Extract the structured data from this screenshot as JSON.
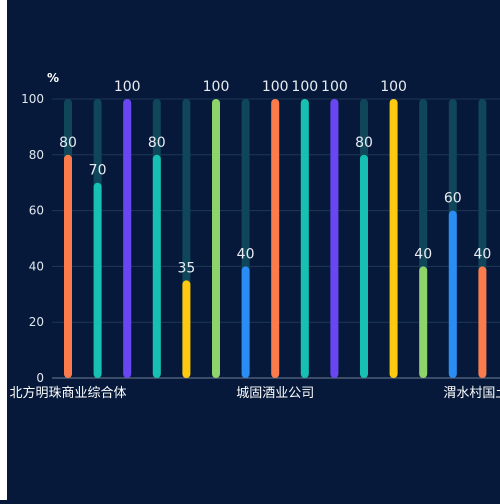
{
  "chart_data": {
    "type": "bar",
    "ylabel": "%",
    "ylim": [
      0,
      100
    ],
    "yticks": [
      0,
      20,
      40,
      60,
      80,
      100
    ],
    "grid": true,
    "background_max": 100,
    "x_tick_labels": [
      "北方明珠商业综合体",
      "城固酒业公司",
      "渭水村国土空"
    ],
    "values": [
      80,
      70,
      100,
      80,
      35,
      100,
      40,
      100,
      100,
      100,
      80,
      100,
      40,
      60,
      40
    ],
    "colors": [
      "#fb7b4d",
      "#16c1b3",
      "#6a45f2",
      "#16c1b3",
      "#fdca10",
      "#8fd46a",
      "#2a8df5",
      "#fb7b4d",
      "#16c1b3",
      "#6a45f2",
      "#16c1b3",
      "#fdca10",
      "#8fd46a",
      "#2a8df5",
      "#fb7b4d"
    ],
    "background_color": "#0f4659"
  }
}
